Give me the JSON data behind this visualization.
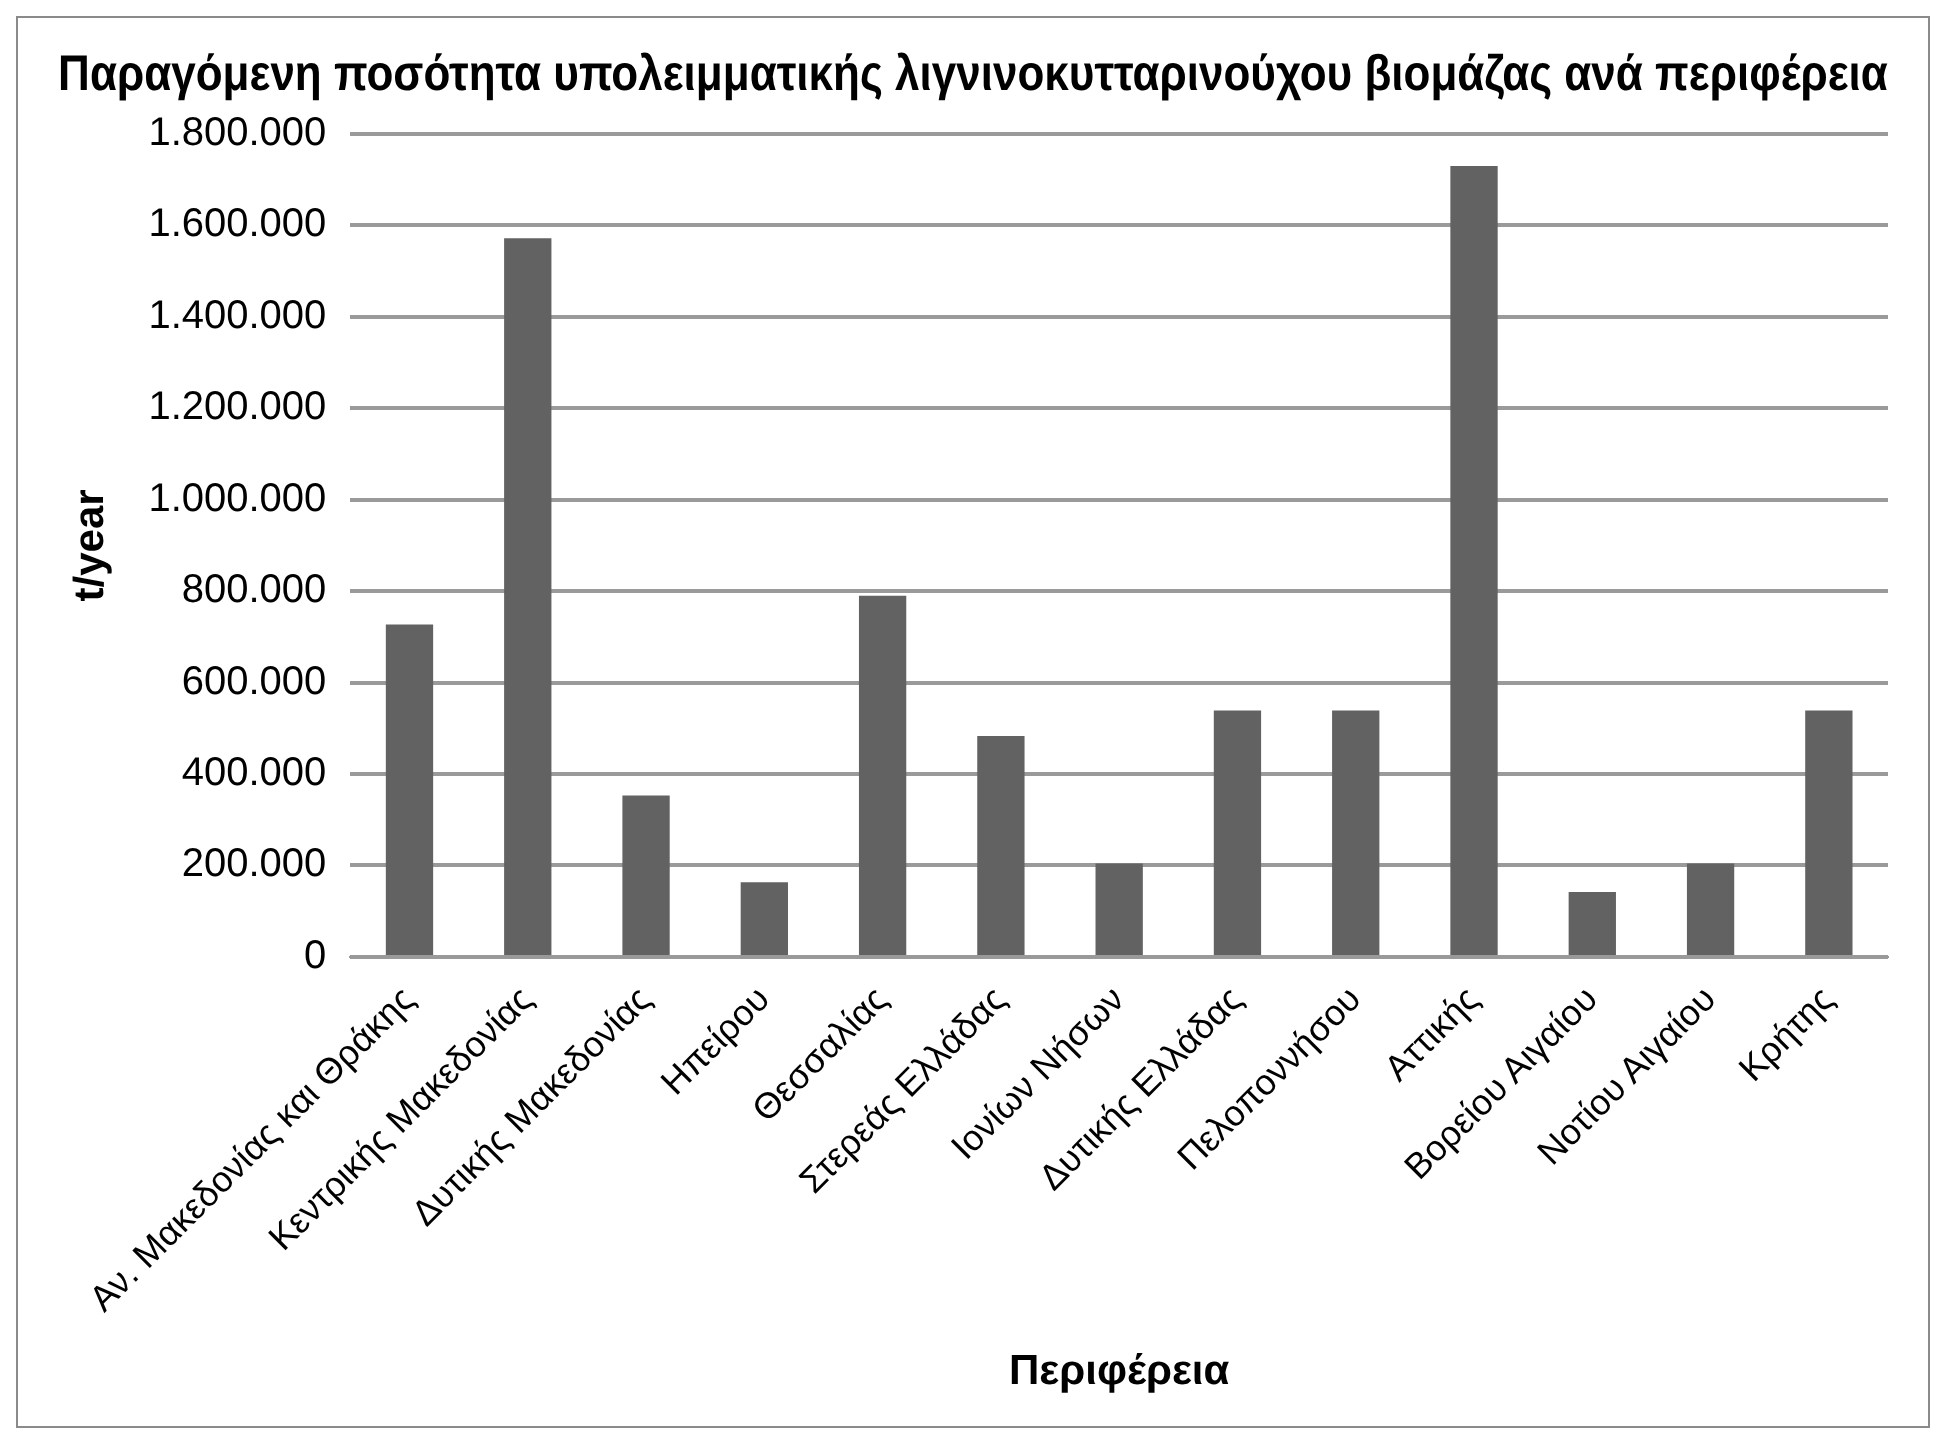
{
  "chart_data": {
    "type": "bar",
    "title": "Παραγόμενη ποσότητα υπολειμματικής λιγνινοκυτταρινούχου βιομάζας ανά περιφέρεια",
    "xlabel": "Περιφέρεια",
    "ylabel": "t/year",
    "categories": [
      "Αν. Μακεδονίας και Θράκης",
      "Κεντρικής Μακεδονίας",
      "Δυτικής Μακεδονίας",
      "Ηπείρου",
      "Θεσσαλίας",
      "Στερεάς Ελλάδας",
      "Ιονίων Νήσων",
      "Δυτικής Ελλάδας",
      "Πελοποννήσου",
      "Αττικής",
      "Βορείου Αιγαίου",
      "Νοτίου Αιγαίου",
      "Κρήτης"
    ],
    "values": [
      727000,
      1572000,
      353000,
      163000,
      790000,
      483000,
      204000,
      539000,
      539000,
      1730000,
      142000,
      204000,
      539000
    ],
    "color": "#626262",
    "ylim": [
      0,
      1800000
    ],
    "yticks": [
      {
        "value": 0,
        "label": "0"
      },
      {
        "value": 200000,
        "label": "200.000"
      },
      {
        "value": 400000,
        "label": "400.000"
      },
      {
        "value": 600000,
        "label": "600.000"
      },
      {
        "value": 800000,
        "label": "800.000"
      },
      {
        "value": 1000000,
        "label": "1.000.000"
      },
      {
        "value": 1200000,
        "label": "1.200.000"
      },
      {
        "value": 1400000,
        "label": "1.400.000"
      },
      {
        "value": 1600000,
        "label": "1.600.000"
      },
      {
        "value": 1800000,
        "label": "1.800.000"
      }
    ],
    "grid": "y",
    "legend": false
  }
}
